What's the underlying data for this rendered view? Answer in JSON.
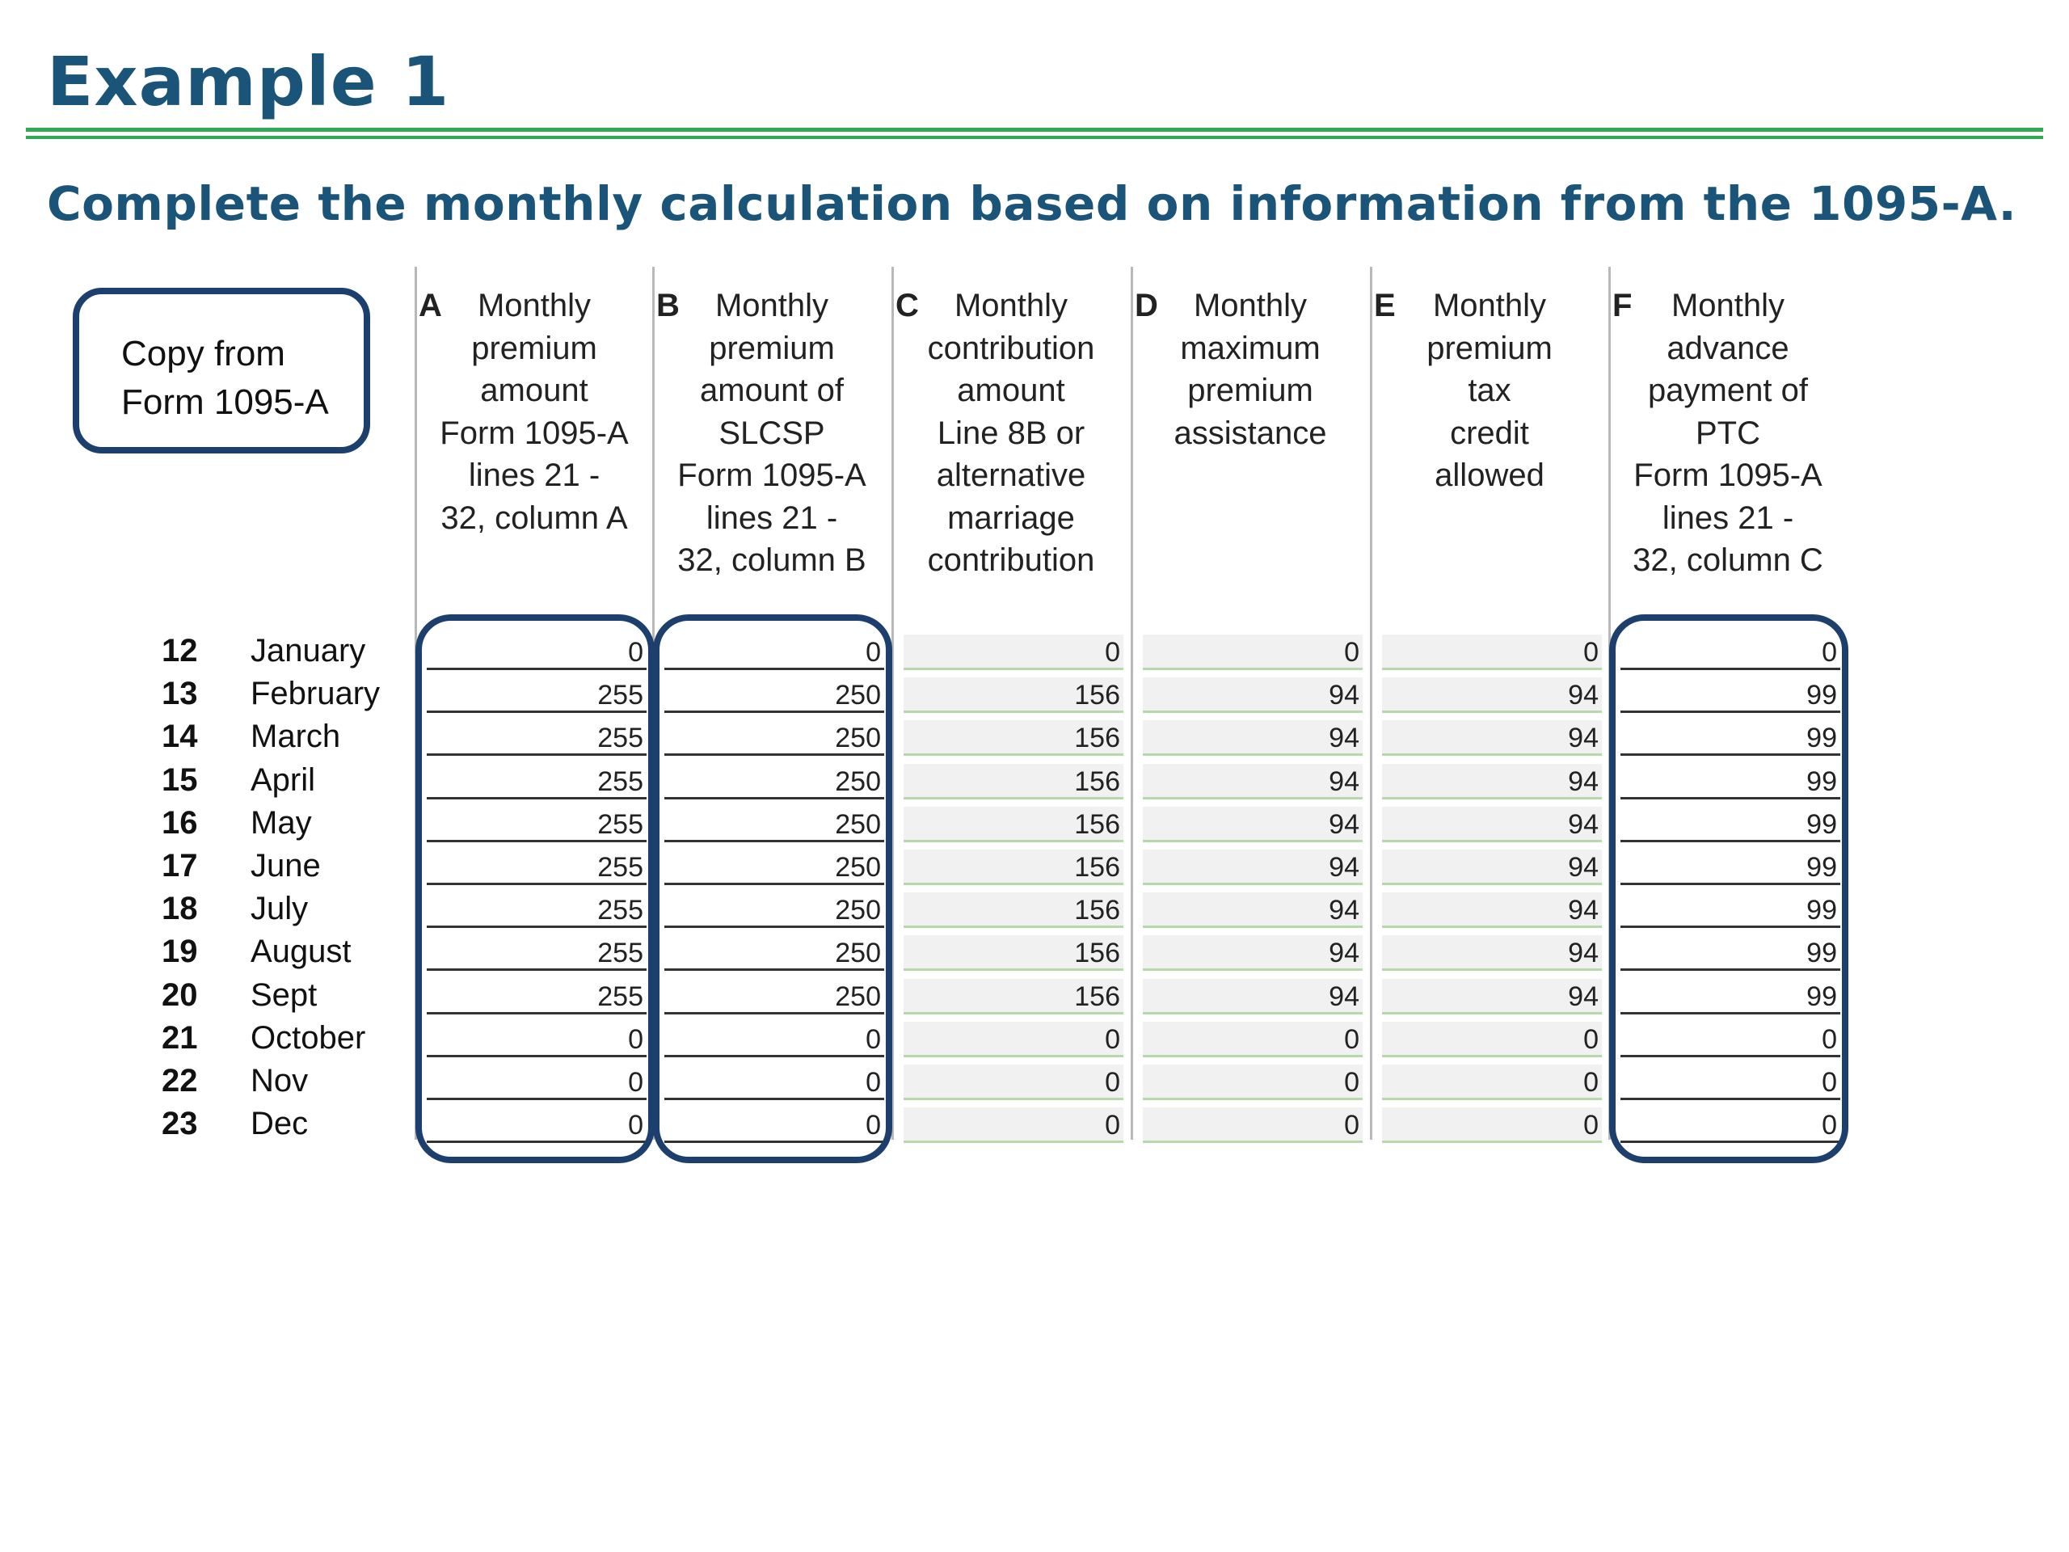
{
  "title": "Example 1",
  "subtitle": "Complete the monthly calculation based on information from the 1095-A.",
  "callout": {
    "line1": "Copy from",
    "line2": "Form 1095-A"
  },
  "columns": [
    {
      "letter": "A",
      "text": "Monthly\npremium\namount\nForm 1095-A\nlines 21 -\n32, column A"
    },
    {
      "letter": "B",
      "text": "Monthly\npremium\namount of\nSLCSP\nForm 1095-A\nlines 21 -\n32, column B"
    },
    {
      "letter": "C",
      "text": "Monthly\ncontribution\namount\nLine 8B or\nalternative\nmarriage\ncontribution"
    },
    {
      "letter": "D",
      "text": "Monthly\nmaximum\npremium\nassistance"
    },
    {
      "letter": "E",
      "text": "Monthly\npremium\ntax\ncredit\nallowed"
    },
    {
      "letter": "F",
      "text": "Monthly\nadvance\npayment of\nPTC\nForm 1095-A\nlines 21 -\n32, column C"
    }
  ],
  "rows": [
    {
      "num": "12",
      "month": "January",
      "values": [
        "0",
        "0",
        "0",
        "0",
        "0",
        "0"
      ]
    },
    {
      "num": "13",
      "month": "February",
      "values": [
        "255",
        "250",
        "156",
        "94",
        "94",
        "99"
      ]
    },
    {
      "num": "14",
      "month": "March",
      "values": [
        "255",
        "250",
        "156",
        "94",
        "94",
        "99"
      ]
    },
    {
      "num": "15",
      "month": "April",
      "values": [
        "255",
        "250",
        "156",
        "94",
        "94",
        "99"
      ]
    },
    {
      "num": "16",
      "month": "May",
      "values": [
        "255",
        "250",
        "156",
        "94",
        "94",
        "99"
      ]
    },
    {
      "num": "17",
      "month": "June",
      "values": [
        "255",
        "250",
        "156",
        "94",
        "94",
        "99"
      ]
    },
    {
      "num": "18",
      "month": "July",
      "values": [
        "255",
        "250",
        "156",
        "94",
        "94",
        "99"
      ]
    },
    {
      "num": "19",
      "month": "August",
      "values": [
        "255",
        "250",
        "156",
        "94",
        "94",
        "99"
      ]
    },
    {
      "num": "20",
      "month": "Sept",
      "values": [
        "255",
        "250",
        "156",
        "94",
        "94",
        "99"
      ]
    },
    {
      "num": "21",
      "month": "October",
      "values": [
        "0",
        "0",
        "0",
        "0",
        "0",
        "0"
      ]
    },
    {
      "num": "22",
      "month": "Nov",
      "values": [
        "0",
        "0",
        "0",
        "0",
        "0",
        "0"
      ]
    },
    {
      "num": "23",
      "month": "Dec",
      "values": [
        "0",
        "0",
        "0",
        "0",
        "0",
        "0"
      ]
    }
  ],
  "colors": {
    "heading": "#1a5478",
    "rule": "#2faa55",
    "highlight_border": "#1c3f6e"
  }
}
